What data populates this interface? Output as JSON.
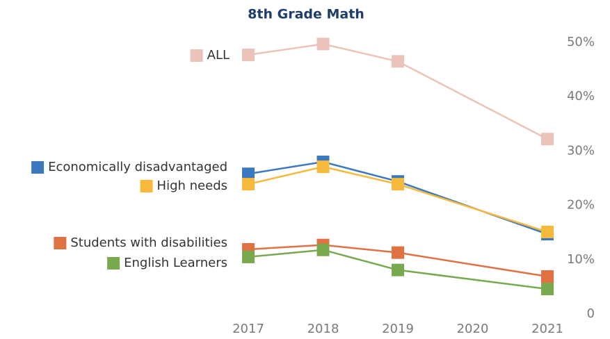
{
  "chart_data": {
    "type": "line",
    "title": "8th Grade Math",
    "x": [
      2017,
      2018,
      2019,
      2021
    ],
    "xlim": [
      2017,
      2021
    ],
    "xticks": [
      2017,
      2018,
      2019,
      2020,
      2021
    ],
    "ylim": [
      0,
      50
    ],
    "yticks": [
      0,
      {
        "value": 10,
        "label": "10%"
      },
      {
        "value": 20,
        "label": "20%"
      },
      {
        "value": 30,
        "label": "30%"
      },
      {
        "value": 40,
        "label": "40%"
      },
      {
        "value": 50,
        "label": "50%"
      }
    ],
    "y_axis_side": "right",
    "grid": false,
    "series": [
      {
        "name": "ALL",
        "color": "#ecc3bb",
        "values": [
          47.7,
          49.7,
          46.5,
          32.2
        ]
      },
      {
        "name": "Economically disadvantaged",
        "color": "#3a78c0",
        "values": [
          25.8,
          28.0,
          24.4,
          14.7
        ]
      },
      {
        "name": "High needs",
        "color": "#f6b93b",
        "values": [
          23.9,
          27.1,
          23.9,
          15.1
        ]
      },
      {
        "name": "Students with disabilities",
        "color": "#df7143",
        "values": [
          11.9,
          12.7,
          11.3,
          6.9
        ]
      },
      {
        "name": "English Learners",
        "color": "#79a94f",
        "values": [
          10.5,
          11.8,
          8.1,
          4.6
        ]
      }
    ]
  }
}
